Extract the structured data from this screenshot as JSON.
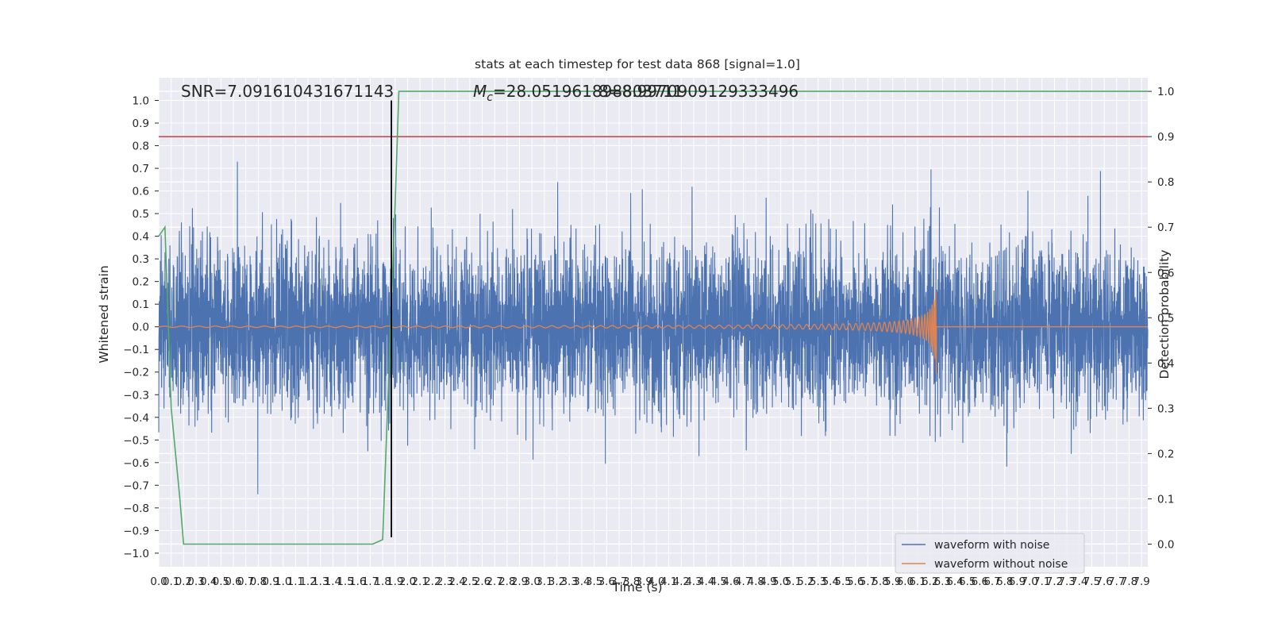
{
  "chart_data": {
    "type": "line",
    "title": "stats at each timestep for test data 868 [signal=1.0]",
    "xlabel": "Time (s)",
    "ylabel": "Whitened strain",
    "ylabel_right": "Detection probability",
    "annotations": {
      "snr": "SNR=7.091610431671143",
      "mc_prefix": "M",
      "mc_sub": "c",
      "mc_value": "=28.051961898803711",
      "overlap": "8=8.9970909129333496"
    },
    "xlim": [
      0.0,
      7.95
    ],
    "ylim_left": [
      -1.06,
      1.1
    ],
    "ylim_right": [
      -0.05,
      1.03
    ],
    "xticks": [
      "0.0",
      "0.1",
      "0.2",
      "0.3",
      "0.4",
      "0.5",
      "0.6",
      "0.7",
      "0.8",
      "0.9",
      "1.0",
      "1.1",
      "1.2",
      "1.3",
      "1.4",
      "1.5",
      "1.6",
      "1.7",
      "1.8",
      "1.9",
      "2.0",
      "2.1",
      "2.2",
      "2.3",
      "2.4",
      "2.5",
      "2.6",
      "2.7",
      "2.8",
      "2.9",
      "3.0",
      "3.1",
      "3.2",
      "3.3",
      "3.4",
      "3.5",
      "3.6",
      "3.7",
      "3.8",
      "3.9",
      "4.0",
      "4.1",
      "4.2",
      "4.3",
      "4.4",
      "4.5",
      "4.6",
      "4.7",
      "4.8",
      "4.9",
      "5.0",
      "5.1",
      "5.2",
      "5.3",
      "5.4",
      "5.5",
      "5.6",
      "5.7",
      "5.8",
      "5.9",
      "6.0",
      "6.1",
      "6.2",
      "6.3",
      "6.4",
      "6.5",
      "6.6",
      "6.7",
      "6.8",
      "6.9",
      "7.0",
      "7.1",
      "7.2",
      "7.3",
      "7.4",
      "7.5",
      "7.6",
      "7.7",
      "7.8",
      "7.9"
    ],
    "yticks_left": [
      "1.0",
      "0.9",
      "0.8",
      "0.7",
      "0.6",
      "0.5",
      "0.4",
      "0.3",
      "0.2",
      "0.1",
      "0.0",
      "−0.1",
      "−0.2",
      "−0.3",
      "−0.4",
      "−0.5",
      "−0.6",
      "−0.7",
      "−0.8",
      "−0.9",
      "−1.0"
    ],
    "yticks_right": [
      "1.0",
      "0.9",
      "0.8",
      "0.7",
      "0.6",
      "0.5",
      "0.4",
      "0.3",
      "0.2",
      "0.1",
      "0.0"
    ],
    "series": [
      {
        "name": "waveform with noise",
        "axis": "left",
        "color": "#4c72b0",
        "kind": "noise",
        "typical_amplitude": 0.4,
        "peak_amplitude": 1.0
      },
      {
        "name": "waveform without noise",
        "axis": "left",
        "color": "#dd8452",
        "kind": "chirp",
        "start_time": 0.0,
        "merger_time": 6.25,
        "peak_amplitude_positive": 0.33,
        "peak_amplitude_negative": -0.4
      },
      {
        "name": "",
        "axis": "right",
        "color": "#55a868",
        "x": [
          0.0,
          0.05,
          0.1,
          0.17,
          0.2,
          0.3,
          1.0,
          1.5,
          1.72,
          1.8,
          1.9,
          1.93,
          2.0,
          7.95
        ],
        "y": [
          0.68,
          0.7,
          0.3,
          0.1,
          0.0,
          0.0,
          0.0,
          0.0,
          0.0,
          0.01,
          0.75,
          1.0,
          1.0,
          1.0
        ]
      }
    ],
    "hlines": [
      {
        "axis": "right",
        "value": 0.9,
        "color": "#c44e52"
      }
    ],
    "vlines": [
      {
        "axis": "left",
        "value": 1.87,
        "ymin": -0.93,
        "ymax": 1.0,
        "color": "#000000"
      }
    ],
    "grid": true,
    "legend": {
      "placement": "lower right",
      "entries": [
        "waveform with noise",
        "waveform without noise"
      ]
    },
    "colors": {
      "axes_bg": "#eaeaf2",
      "grid": "#ffffff",
      "noise": "#4c72b0",
      "clean": "#dd8452",
      "prob": "#55a868",
      "threshold": "#c44e52",
      "marker": "#000000"
    }
  }
}
